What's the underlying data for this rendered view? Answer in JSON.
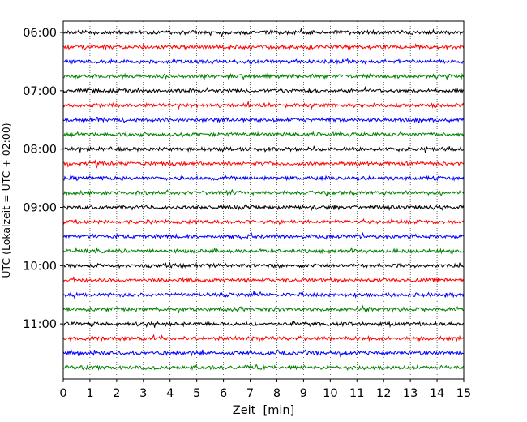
{
  "chart_data": {
    "type": "line",
    "title": "",
    "xlabel": "Zeit  [min]",
    "ylabel": "UTC (Lokalzeit = UTC + 02:00)",
    "xlim": [
      0,
      15
    ],
    "x_ticks": [
      "0",
      "1",
      "2",
      "3",
      "4",
      "5",
      "6",
      "7",
      "8",
      "9",
      "10",
      "11",
      "12",
      "13",
      "14",
      "15"
    ],
    "y_ticks": [
      "06:00",
      "07:00",
      "08:00",
      "09:00",
      "10:00",
      "11:00"
    ],
    "grid": "vertical dotted lines at each minute",
    "trace_interval_min": 15,
    "trace_color_cycle": [
      "#000000",
      "#ff0000",
      "#0000ff",
      "#008000"
    ],
    "traces": [
      {
        "start": "06:00",
        "color": "#000000"
      },
      {
        "start": "06:15",
        "color": "#ff0000"
      },
      {
        "start": "06:30",
        "color": "#0000ff"
      },
      {
        "start": "06:45",
        "color": "#008000"
      },
      {
        "start": "07:00",
        "color": "#000000"
      },
      {
        "start": "07:15",
        "color": "#ff0000"
      },
      {
        "start": "07:30",
        "color": "#0000ff"
      },
      {
        "start": "07:45",
        "color": "#008000"
      },
      {
        "start": "08:00",
        "color": "#000000"
      },
      {
        "start": "08:15",
        "color": "#ff0000"
      },
      {
        "start": "08:30",
        "color": "#0000ff"
      },
      {
        "start": "08:45",
        "color": "#008000"
      },
      {
        "start": "09:00",
        "color": "#000000"
      },
      {
        "start": "09:15",
        "color": "#ff0000"
      },
      {
        "start": "09:30",
        "color": "#0000ff"
      },
      {
        "start": "09:45",
        "color": "#008000"
      },
      {
        "start": "10:00",
        "color": "#000000"
      },
      {
        "start": "10:15",
        "color": "#ff0000"
      },
      {
        "start": "10:30",
        "color": "#0000ff"
      },
      {
        "start": "10:45",
        "color": "#008000"
      },
      {
        "start": "11:00",
        "color": "#000000"
      },
      {
        "start": "11:15",
        "color": "#ff0000"
      },
      {
        "start": "11:30",
        "color": "#0000ff"
      },
      {
        "start": "11:45",
        "color": "#008000"
      }
    ]
  }
}
